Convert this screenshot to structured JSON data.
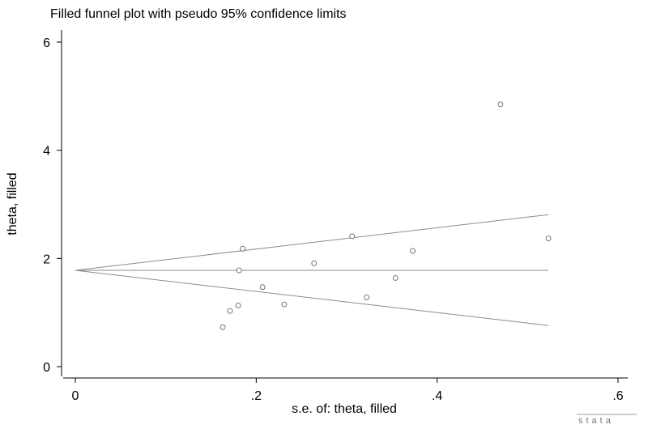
{
  "chart_data": {
    "type": "scatter",
    "title": "Filled funnel plot with pseudo 95% confidence limits",
    "xlabel": "s.e. of: theta, filled",
    "ylabel": "theta, filled",
    "xlim": [
      0,
      0.6
    ],
    "ylim": [
      0,
      6
    ],
    "xticks": [
      0,
      0.2,
      0.4,
      0.6
    ],
    "xtick_labels": [
      "0",
      ".2",
      ".4",
      ".6"
    ],
    "yticks": [
      0,
      2,
      4,
      6
    ],
    "ytick_labels": [
      "0",
      "2",
      "4",
      "6"
    ],
    "grid": false,
    "points": [
      {
        "x": 0.163,
        "y": 0.73
      },
      {
        "x": 0.171,
        "y": 1.03
      },
      {
        "x": 0.18,
        "y": 1.13
      },
      {
        "x": 0.181,
        "y": 1.78
      },
      {
        "x": 0.185,
        "y": 2.18
      },
      {
        "x": 0.207,
        "y": 1.47
      },
      {
        "x": 0.231,
        "y": 1.15
      },
      {
        "x": 0.264,
        "y": 1.91
      },
      {
        "x": 0.306,
        "y": 2.41
      },
      {
        "x": 0.322,
        "y": 1.28
      },
      {
        "x": 0.354,
        "y": 1.64
      },
      {
        "x": 0.373,
        "y": 2.14
      },
      {
        "x": 0.47,
        "y": 4.85
      },
      {
        "x": 0.523,
        "y": 2.37
      }
    ],
    "pooled_estimate": 1.78,
    "funnel_lines": [
      {
        "name": "center",
        "points": [
          [
            0,
            1.78
          ],
          [
            0.523,
            1.78
          ]
        ]
      },
      {
        "name": "upper limit",
        "points": [
          [
            0,
            1.78
          ],
          [
            0.523,
            2.81
          ]
        ]
      },
      {
        "name": "lower limit",
        "points": [
          [
            0,
            1.78
          ],
          [
            0.523,
            0.76
          ]
        ]
      }
    ]
  },
  "watermark": "stata"
}
